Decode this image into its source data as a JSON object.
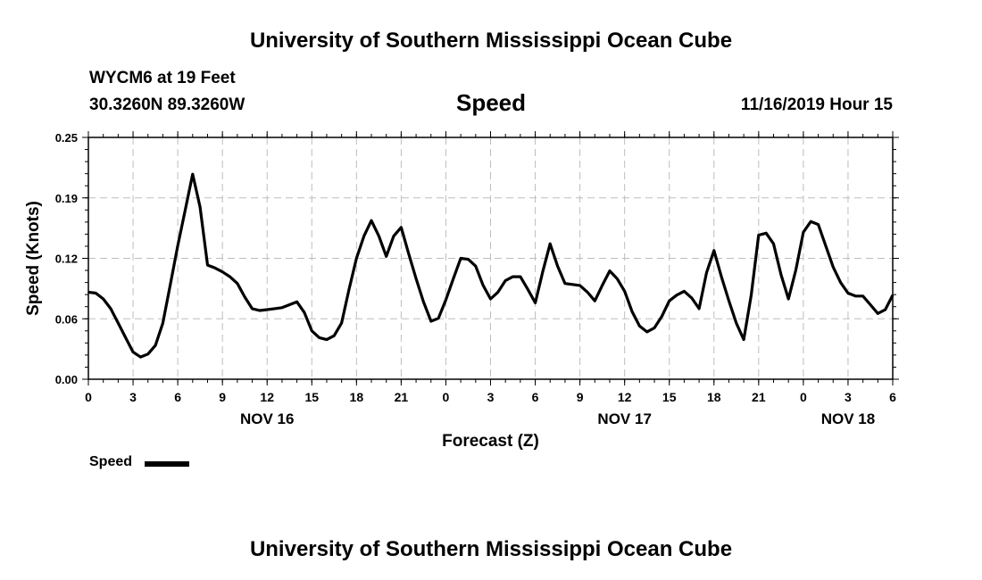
{
  "header": {
    "title_top": "University of Southern Mississippi Ocean Cube",
    "station": "WYCM6 at 19 Feet",
    "coords": "30.3260N 89.3260W",
    "variable": "Speed",
    "datetime": "11/16/2019 Hour 15",
    "title_bottom": "University of Southern Mississippi Ocean Cube"
  },
  "legend": {
    "label": "Speed"
  },
  "chart_data": {
    "type": "line",
    "ylabel": "Speed (Knots)",
    "xlabel": "Forecast (Z)",
    "ylim": [
      0,
      0.25
    ],
    "yticks": [
      "0.00",
      "0.06",
      "0.12",
      "0.19",
      "0.25"
    ],
    "xlim": [
      0,
      54
    ],
    "xticks": [
      "0",
      "3",
      "6",
      "9",
      "12",
      "15",
      "18",
      "21",
      "0",
      "3",
      "6",
      "9",
      "12",
      "15",
      "18",
      "21",
      "0",
      "3",
      "6"
    ],
    "date_labels": [
      {
        "hour": 12,
        "label": "NOV 16"
      },
      {
        "hour": 36,
        "label": "NOV 17"
      },
      {
        "hour": 51,
        "label": "NOV 18"
      }
    ],
    "grid": true,
    "legend_position": "bottom-left",
    "series": [
      {
        "name": "Speed",
        "color": "#000000",
        "x": [
          0,
          0.5,
          1,
          1.5,
          2,
          2.5,
          3,
          3.5,
          4,
          4.5,
          5,
          5.5,
          6,
          6.5,
          7,
          7.5,
          8,
          8.5,
          9,
          9.5,
          10,
          10.5,
          11,
          11.5,
          12,
          12.5,
          13,
          13.5,
          14,
          14.5,
          15,
          15.5,
          16,
          16.5,
          17,
          17.5,
          18,
          18.5,
          19,
          19.5,
          20,
          20.5,
          21,
          21.5,
          22,
          22.5,
          23,
          23.5,
          24,
          24.5,
          25,
          25.5,
          26,
          26.5,
          27,
          27.5,
          28,
          28.5,
          29,
          29.5,
          30,
          30.5,
          31,
          31.5,
          32,
          32.5,
          33,
          33.5,
          34,
          34.5,
          35,
          35.5,
          36,
          36.5,
          37,
          37.5,
          38,
          38.5,
          39,
          39.5,
          40,
          40.5,
          41,
          41.5,
          42,
          42.5,
          43,
          43.5,
          44,
          44.5,
          45,
          45.5,
          46,
          46.5,
          47,
          47.5,
          48,
          48.5,
          49,
          49.5,
          50,
          50.5,
          51,
          51.5,
          52,
          52.5,
          53,
          53.5,
          54
        ],
        "y": [
          0.09,
          0.089,
          0.083,
          0.073,
          0.058,
          0.043,
          0.028,
          0.023,
          0.026,
          0.035,
          0.058,
          0.098,
          0.138,
          0.175,
          0.212,
          0.178,
          0.118,
          0.115,
          0.111,
          0.106,
          0.099,
          0.085,
          0.073,
          0.071,
          0.072,
          0.073,
          0.074,
          0.077,
          0.08,
          0.069,
          0.05,
          0.043,
          0.041,
          0.045,
          0.058,
          0.093,
          0.125,
          0.148,
          0.164,
          0.148,
          0.127,
          0.148,
          0.157,
          0.13,
          0.104,
          0.08,
          0.06,
          0.063,
          0.082,
          0.104,
          0.125,
          0.124,
          0.117,
          0.097,
          0.083,
          0.09,
          0.102,
          0.106,
          0.106,
          0.093,
          0.079,
          0.111,
          0.14,
          0.117,
          0.099,
          0.098,
          0.097,
          0.09,
          0.081,
          0.097,
          0.112,
          0.104,
          0.091,
          0.07,
          0.055,
          0.049,
          0.053,
          0.065,
          0.081,
          0.087,
          0.091,
          0.084,
          0.073,
          0.11,
          0.133,
          0.106,
          0.081,
          0.058,
          0.041,
          0.087,
          0.149,
          0.151,
          0.14,
          0.108,
          0.083,
          0.113,
          0.152,
          0.163,
          0.16,
          0.138,
          0.116,
          0.1,
          0.089,
          0.086,
          0.086,
          0.077,
          0.068,
          0.072,
          0.087
        ]
      }
    ]
  }
}
